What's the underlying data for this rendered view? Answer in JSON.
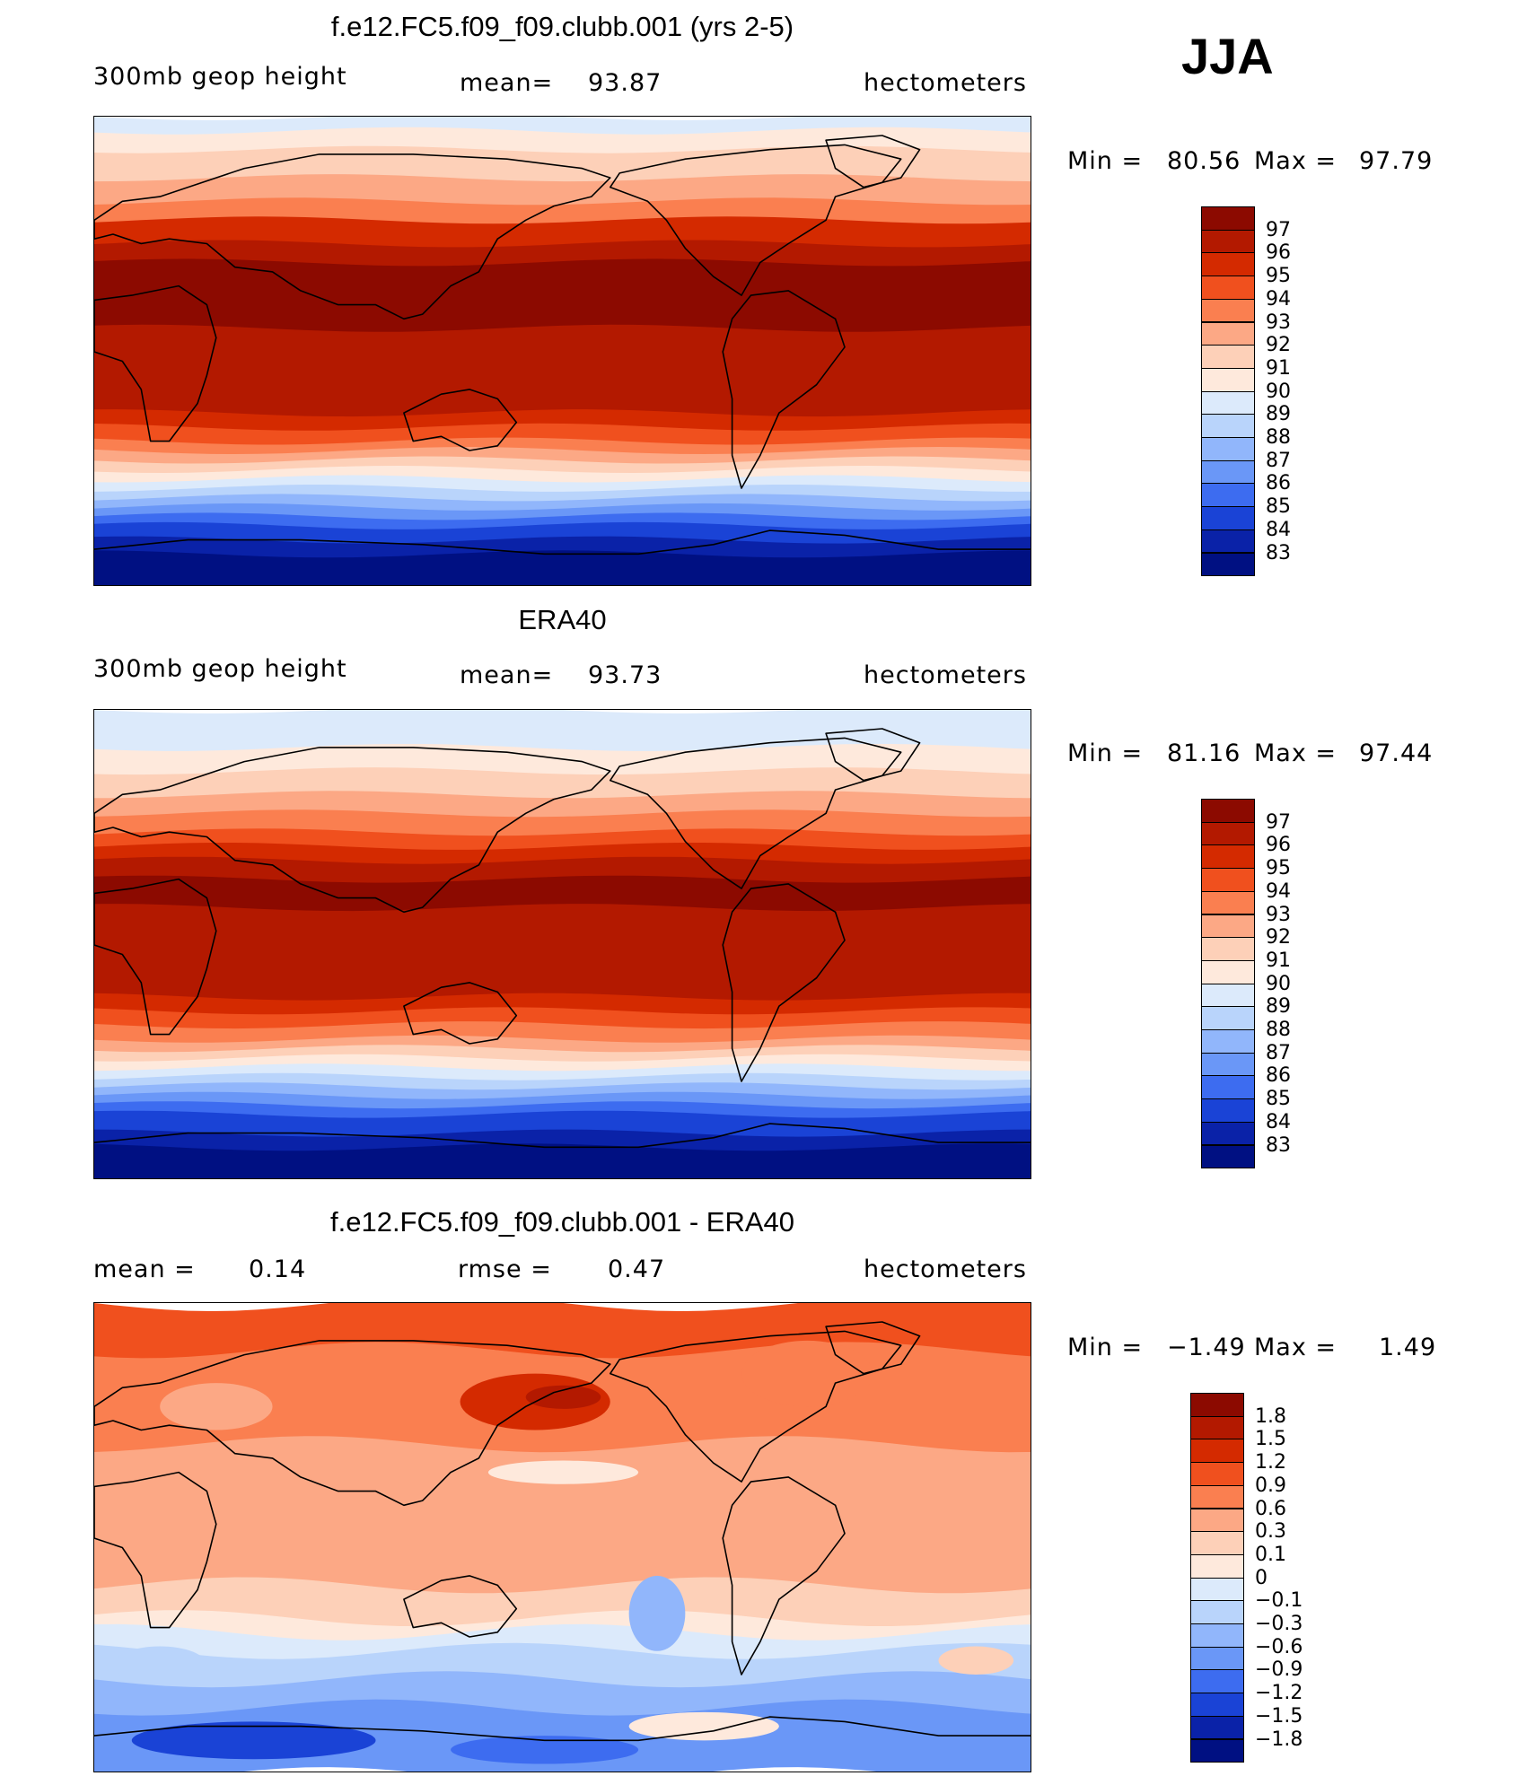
{
  "season": "JJA",
  "panels": [
    {
      "title": "f.e12.FC5.f09_f09.clubb.001 (yrs 2-5)",
      "left": "300mb  geop  height",
      "center_label": "mean=",
      "center_value": "93.87",
      "right": "hectometers",
      "min_label": "Min  =",
      "min_value": "80.56",
      "max_label": "Max  =",
      "max_value": "97.79"
    },
    {
      "title": "ERA40",
      "left": "300mb  geop  height",
      "center_label": "mean=",
      "center_value": "93.73",
      "right": "hectometers",
      "min_label": "Min  =",
      "min_value": "81.16",
      "max_label": "Max  =",
      "max_value": "97.44"
    },
    {
      "title": "f.e12.FC5.f09_f09.clubb.001 - ERA40",
      "left_label": "mean  =",
      "left_value": "0.14",
      "center_label": "rmse  =",
      "center_value": "0.47",
      "right": "hectometers",
      "min_label": "Min  =",
      "min_value": "−1.49",
      "max_label": "Max  =",
      "max_value": "1.49"
    }
  ],
  "legends": [
    {
      "labels": [
        "97",
        "96",
        "95",
        "94",
        "93",
        "92",
        "91",
        "90",
        "89",
        "88",
        "87",
        "86",
        "85",
        "84",
        "83"
      ],
      "colors": [
        "#8c0a00",
        "#b31900",
        "#d42a00",
        "#f0501e",
        "#fa7f50",
        "#fca885",
        "#fdd0b8",
        "#fee9dc",
        "#dceafb",
        "#b9d4fb",
        "#91b6fb",
        "#6a97f7",
        "#3d6cf0",
        "#1a43d6",
        "#0a22a8",
        "#001082"
      ]
    },
    {
      "labels": [
        "97",
        "96",
        "95",
        "94",
        "93",
        "92",
        "91",
        "90",
        "89",
        "88",
        "87",
        "86",
        "85",
        "84",
        "83"
      ],
      "colors": [
        "#8c0a00",
        "#b31900",
        "#d42a00",
        "#f0501e",
        "#fa7f50",
        "#fca885",
        "#fdd0b8",
        "#fee9dc",
        "#dceafb",
        "#b9d4fb",
        "#91b6fb",
        "#6a97f7",
        "#3d6cf0",
        "#1a43d6",
        "#0a22a8",
        "#001082"
      ]
    },
    {
      "labels": [
        "1.8",
        "1.5",
        "1.2",
        "0.9",
        "0.6",
        "0.3",
        "0.1",
        "0",
        "−0.1",
        "−0.3",
        "−0.6",
        "−0.9",
        "−1.2",
        "−1.5",
        "−1.8"
      ],
      "colors": [
        "#8c0a00",
        "#b31900",
        "#d42a00",
        "#f0501e",
        "#fa7f50",
        "#fca885",
        "#fdd0b8",
        "#fee9dc",
        "#dceafb",
        "#b9d4fb",
        "#91b6fb",
        "#6a97f7",
        "#3d6cf0",
        "#1a43d6",
        "#0a22a8",
        "#001082"
      ]
    }
  ],
  "map_fields": [
    {
      "type": "zonal-bands",
      "bands": [
        [
          0,
          0.03,
          "#dceafb"
        ],
        [
          0.03,
          0.07,
          "#fee9dc"
        ],
        [
          0.07,
          0.13,
          "#fdd0b8"
        ],
        [
          0.13,
          0.18,
          "#fca885"
        ],
        [
          0.18,
          0.22,
          "#fa7f50"
        ],
        [
          0.22,
          0.27,
          "#d42a00"
        ],
        [
          0.27,
          0.31,
          "#b31900"
        ],
        [
          0.31,
          0.45,
          "#8c0a00"
        ],
        [
          0.45,
          0.63,
          "#b31900"
        ],
        [
          0.63,
          0.66,
          "#d42a00"
        ],
        [
          0.66,
          0.69,
          "#f0501e"
        ],
        [
          0.69,
          0.71,
          "#fa7f50"
        ],
        [
          0.71,
          0.73,
          "#fca885"
        ],
        [
          0.73,
          0.75,
          "#fdd0b8"
        ],
        [
          0.75,
          0.77,
          "#fee9dc"
        ],
        [
          0.77,
          0.79,
          "#dceafb"
        ],
        [
          0.79,
          0.81,
          "#b9d4fb"
        ],
        [
          0.81,
          0.83,
          "#91b6fb"
        ],
        [
          0.83,
          0.85,
          "#6a97f7"
        ],
        [
          0.85,
          0.87,
          "#3d6cf0"
        ],
        [
          0.87,
          0.9,
          "#1a43d6"
        ],
        [
          0.9,
          0.93,
          "#0a22a8"
        ],
        [
          0.93,
          1.0,
          "#001082"
        ]
      ]
    },
    {
      "type": "zonal-bands",
      "bands": [
        [
          0,
          0.08,
          "#dceafb"
        ],
        [
          0.08,
          0.13,
          "#fee9dc"
        ],
        [
          0.13,
          0.18,
          "#fdd0b8"
        ],
        [
          0.18,
          0.22,
          "#fca885"
        ],
        [
          0.22,
          0.26,
          "#fa7f50"
        ],
        [
          0.26,
          0.29,
          "#f0501e"
        ],
        [
          0.29,
          0.32,
          "#d42a00"
        ],
        [
          0.32,
          0.36,
          "#b31900"
        ],
        [
          0.36,
          0.42,
          "#8c0a00"
        ],
        [
          0.42,
          0.61,
          "#b31900"
        ],
        [
          0.61,
          0.64,
          "#d42a00"
        ],
        [
          0.64,
          0.67,
          "#f0501e"
        ],
        [
          0.67,
          0.7,
          "#fa7f50"
        ],
        [
          0.7,
          0.72,
          "#fca885"
        ],
        [
          0.72,
          0.74,
          "#fdd0b8"
        ],
        [
          0.74,
          0.76,
          "#fee9dc"
        ],
        [
          0.76,
          0.78,
          "#dceafb"
        ],
        [
          0.78,
          0.8,
          "#b9d4fb"
        ],
        [
          0.8,
          0.82,
          "#91b6fb"
        ],
        [
          0.82,
          0.84,
          "#6a97f7"
        ],
        [
          0.84,
          0.86,
          "#3d6cf0"
        ],
        [
          0.86,
          0.9,
          "#1a43d6"
        ],
        [
          0.9,
          0.93,
          "#0a22a8"
        ],
        [
          0.93,
          1.0,
          "#001082"
        ]
      ]
    },
    {
      "type": "diff",
      "bands": [
        [
          0,
          0.1,
          "#f0501e"
        ],
        [
          0.1,
          0.3,
          "#fa7f50"
        ],
        [
          0.3,
          0.6,
          "#fca885"
        ],
        [
          0.6,
          0.67,
          "#fdd0b8"
        ],
        [
          0.67,
          0.7,
          "#fee9dc"
        ],
        [
          0.7,
          0.74,
          "#dceafb"
        ],
        [
          0.74,
          0.8,
          "#b9d4fb"
        ],
        [
          0.8,
          0.86,
          "#91b6fb"
        ],
        [
          0.86,
          1.0,
          "#6a97f7"
        ]
      ]
    }
  ]
}
